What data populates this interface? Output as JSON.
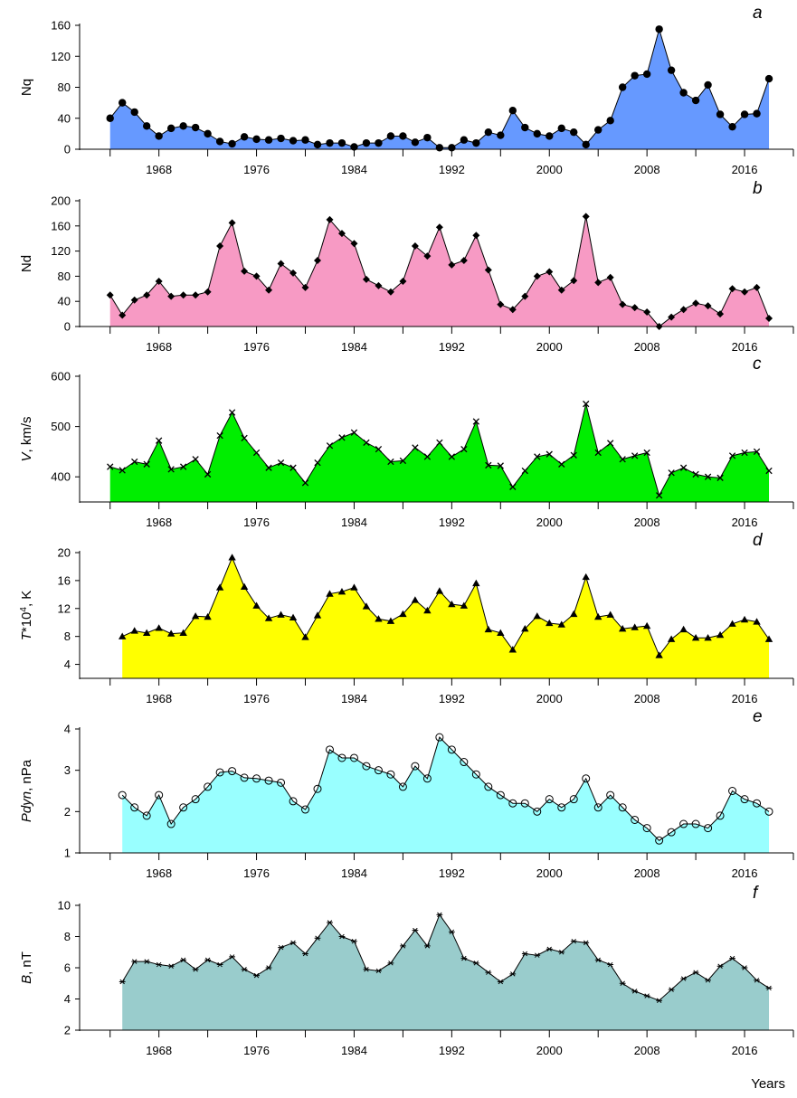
{
  "chart_data": [
    {
      "type": "area",
      "panel_label": "a",
      "ylabel": "Nq",
      "ylabel_parts": [
        {
          "t": "Nq"
        }
      ],
      "ylim": [
        0,
        160
      ],
      "yticks": [
        0,
        40,
        80,
        120,
        160
      ],
      "xlim": [
        1961.5,
        2020
      ],
      "xticks": [
        1968,
        1976,
        1984,
        1992,
        2000,
        2008,
        2016
      ],
      "fill_color": "#6699ff",
      "marker": "dot",
      "x": [
        1964,
        1965,
        1966,
        1967,
        1968,
        1969,
        1970,
        1971,
        1972,
        1973,
        1974,
        1975,
        1976,
        1977,
        1978,
        1979,
        1980,
        1981,
        1982,
        1983,
        1984,
        1985,
        1986,
        1987,
        1988,
        1989,
        1990,
        1991,
        1992,
        1993,
        1994,
        1995,
        1996,
        1997,
        1998,
        1999,
        2000,
        2001,
        2002,
        2003,
        2004,
        2005,
        2006,
        2007,
        2008,
        2009,
        2010,
        2011,
        2012,
        2013,
        2014,
        2015,
        2016,
        2017,
        2018
      ],
      "values": [
        40,
        60,
        48,
        30,
        17,
        27,
        30,
        28,
        20,
        10,
        7,
        16,
        13,
        12,
        14,
        11,
        12,
        6,
        8,
        8,
        3,
        8,
        8,
        17,
        17,
        9,
        15,
        2,
        2,
        12,
        8,
        22,
        18,
        50,
        28,
        20,
        17,
        27,
        22,
        6,
        25,
        37,
        80,
        95,
        97,
        155,
        102,
        73,
        63,
        83,
        45,
        29,
        45,
        46,
        91
      ]
    },
    {
      "type": "area",
      "panel_label": "b",
      "ylabel": "Nd",
      "ylabel_parts": [
        {
          "t": "Nd"
        }
      ],
      "ylim": [
        0,
        200
      ],
      "yticks": [
        0,
        40,
        80,
        120,
        160,
        200
      ],
      "xlim": [
        1961.5,
        2020
      ],
      "xticks": [
        1968,
        1976,
        1984,
        1992,
        2000,
        2008,
        2016
      ],
      "fill_color": "#f79ac4",
      "marker": "diamond",
      "x": [
        1964,
        1965,
        1966,
        1967,
        1968,
        1969,
        1970,
        1971,
        1972,
        1973,
        1974,
        1975,
        1976,
        1977,
        1978,
        1979,
        1980,
        1981,
        1982,
        1983,
        1984,
        1985,
        1986,
        1987,
        1988,
        1989,
        1990,
        1991,
        1992,
        1993,
        1994,
        1995,
        1996,
        1997,
        1998,
        1999,
        2000,
        2001,
        2002,
        2003,
        2004,
        2005,
        2006,
        2007,
        2008,
        2009,
        2010,
        2011,
        2012,
        2013,
        2014,
        2015,
        2016,
        2017,
        2018
      ],
      "values": [
        50,
        18,
        42,
        50,
        72,
        48,
        50,
        50,
        55,
        128,
        165,
        88,
        80,
        58,
        100,
        85,
        62,
        105,
        170,
        148,
        132,
        75,
        65,
        55,
        72,
        128,
        112,
        158,
        98,
        105,
        145,
        90,
        35,
        27,
        48,
        80,
        87,
        58,
        73,
        175,
        70,
        78,
        35,
        30,
        23,
        0,
        15,
        27,
        37,
        33,
        20,
        60,
        55,
        62,
        13
      ]
    },
    {
      "type": "area",
      "panel_label": "c",
      "ylabel": "V, km/s",
      "ylabel_parts": [
        {
          "t": "V",
          "italic": true
        },
        {
          "t": ", km/s"
        }
      ],
      "ylim": [
        350,
        600
      ],
      "yticks": [
        400,
        500,
        600
      ],
      "xlim": [
        1961.5,
        2020
      ],
      "xticks": [
        1968,
        1976,
        1984,
        1992,
        2000,
        2008,
        2016
      ],
      "fill_color": "#00ee00",
      "marker": "x",
      "x": [
        1964,
        1965,
        1966,
        1967,
        1968,
        1969,
        1970,
        1971,
        1972,
        1973,
        1974,
        1975,
        1976,
        1977,
        1978,
        1979,
        1980,
        1981,
        1982,
        1983,
        1984,
        1985,
        1986,
        1987,
        1988,
        1989,
        1990,
        1991,
        1992,
        1993,
        1994,
        1995,
        1996,
        1997,
        1998,
        1999,
        2000,
        2001,
        2002,
        2003,
        2004,
        2005,
        2006,
        2007,
        2008,
        2009,
        2010,
        2011,
        2012,
        2013,
        2014,
        2015,
        2016,
        2017,
        2018
      ],
      "values": [
        420,
        413,
        430,
        425,
        472,
        415,
        420,
        435,
        405,
        482,
        528,
        477,
        448,
        418,
        428,
        418,
        388,
        428,
        462,
        478,
        488,
        468,
        455,
        430,
        432,
        458,
        440,
        468,
        440,
        455,
        510,
        423,
        422,
        380,
        412,
        440,
        445,
        425,
        443,
        545,
        448,
        467,
        435,
        442,
        448,
        363,
        408,
        418,
        405,
        400,
        398,
        442,
        448,
        450,
        412
      ]
    },
    {
      "type": "area",
      "panel_label": "d",
      "ylabel": "T*10^4, K",
      "ylabel_parts": [
        {
          "t": "T",
          "italic": true
        },
        {
          "t": "*10"
        },
        {
          "t": "4",
          "sup": true
        },
        {
          "t": ", K"
        }
      ],
      "ylim": [
        2,
        20
      ],
      "yticks": [
        4,
        8,
        12,
        16,
        20
      ],
      "xlim": [
        1961.5,
        2020
      ],
      "xticks": [
        1968,
        1976,
        1984,
        1992,
        2000,
        2008,
        2016
      ],
      "fill_color": "#ffff00",
      "marker": "triangle",
      "x": [
        1965,
        1966,
        1967,
        1968,
        1969,
        1970,
        1971,
        1972,
        1973,
        1974,
        1975,
        1976,
        1977,
        1978,
        1979,
        1980,
        1981,
        1982,
        1983,
        1984,
        1985,
        1986,
        1987,
        1988,
        1989,
        1990,
        1991,
        1992,
        1993,
        1994,
        1995,
        1996,
        1997,
        1998,
        1999,
        2000,
        2001,
        2002,
        2003,
        2004,
        2005,
        2006,
        2007,
        2008,
        2009,
        2010,
        2011,
        2012,
        2013,
        2014,
        2015,
        2016,
        2017,
        2018
      ],
      "values": [
        8.0,
        8.8,
        8.5,
        9.2,
        8.4,
        8.5,
        10.9,
        10.8,
        15.0,
        19.3,
        15.1,
        12.4,
        10.6,
        11.1,
        10.7,
        7.9,
        11.0,
        14.1,
        14.4,
        15.0,
        12.3,
        10.5,
        10.2,
        11.2,
        13.2,
        11.7,
        14.5,
        12.6,
        12.4,
        15.6,
        9.0,
        8.5,
        6.1,
        9.1,
        10.9,
        9.9,
        9.7,
        11.2,
        16.5,
        10.8,
        11.1,
        9.1,
        9.3,
        9.5,
        5.3,
        7.6,
        9.0,
        7.8,
        7.8,
        8.2,
        9.8,
        10.4,
        10.1,
        7.6
      ]
    },
    {
      "type": "area",
      "panel_label": "e",
      "ylabel": "Pdyn, nPa",
      "ylabel_parts": [
        {
          "t": "Pdyn",
          "italic": true
        },
        {
          "t": ", nPa"
        }
      ],
      "ylim": [
        1,
        4
      ],
      "yticks": [
        1,
        2,
        3,
        4
      ],
      "xlim": [
        1961.5,
        2020
      ],
      "xticks": [
        1968,
        1976,
        1984,
        1992,
        2000,
        2008,
        2016
      ],
      "fill_color": "#99ffff",
      "marker": "circle",
      "x": [
        1965,
        1966,
        1967,
        1968,
        1969,
        1970,
        1971,
        1972,
        1973,
        1974,
        1975,
        1976,
        1977,
        1978,
        1979,
        1980,
        1981,
        1982,
        1983,
        1984,
        1985,
        1986,
        1987,
        1988,
        1989,
        1990,
        1991,
        1992,
        1993,
        1994,
        1995,
        1996,
        1997,
        1998,
        1999,
        2000,
        2001,
        2002,
        2003,
        2004,
        2005,
        2006,
        2007,
        2008,
        2009,
        2010,
        2011,
        2012,
        2013,
        2014,
        2015,
        2016,
        2017,
        2018
      ],
      "values": [
        2.4,
        2.1,
        1.9,
        2.4,
        1.7,
        2.1,
        2.3,
        2.6,
        2.95,
        2.98,
        2.82,
        2.8,
        2.75,
        2.7,
        2.25,
        2.05,
        2.55,
        3.5,
        3.3,
        3.3,
        3.1,
        3.0,
        2.9,
        2.6,
        3.1,
        2.8,
        3.8,
        3.5,
        3.2,
        2.9,
        2.6,
        2.4,
        2.2,
        2.2,
        2.0,
        2.3,
        2.1,
        2.3,
        2.8,
        2.1,
        2.4,
        2.1,
        1.8,
        1.6,
        1.3,
        1.5,
        1.7,
        1.7,
        1.6,
        1.9,
        2.5,
        2.3,
        2.2,
        2.0
      ]
    },
    {
      "type": "area",
      "panel_label": "f",
      "ylabel": "B, nT",
      "ylabel_parts": [
        {
          "t": "B",
          "italic": true
        },
        {
          "t": ", nT"
        }
      ],
      "ylim": [
        2,
        10
      ],
      "yticks": [
        2,
        4,
        6,
        8,
        10
      ],
      "xlim": [
        1961.5,
        2020
      ],
      "xticks": [
        1968,
        1976,
        1984,
        1992,
        2000,
        2008,
        2016
      ],
      "xlabel": "Years",
      "fill_color": "#99cccc",
      "marker": "star",
      "x": [
        1965,
        1966,
        1967,
        1968,
        1969,
        1970,
        1971,
        1972,
        1973,
        1974,
        1975,
        1976,
        1977,
        1978,
        1979,
        1980,
        1981,
        1982,
        1983,
        1984,
        1985,
        1986,
        1987,
        1988,
        1989,
        1990,
        1991,
        1992,
        1993,
        1994,
        1995,
        1996,
        1997,
        1998,
        1999,
        2000,
        2001,
        2002,
        2003,
        2004,
        2005,
        2006,
        2007,
        2008,
        2009,
        2010,
        2011,
        2012,
        2013,
        2014,
        2015,
        2016,
        2017,
        2018
      ],
      "values": [
        5.1,
        6.4,
        6.4,
        6.2,
        6.1,
        6.5,
        5.9,
        6.5,
        6.2,
        6.7,
        5.9,
        5.5,
        6.0,
        7.3,
        7.6,
        6.9,
        7.9,
        8.9,
        8.0,
        7.7,
        5.9,
        5.8,
        6.3,
        7.4,
        8.4,
        7.4,
        9.4,
        8.3,
        6.6,
        6.3,
        5.7,
        5.1,
        5.6,
        6.9,
        6.8,
        7.2,
        7.0,
        7.7,
        7.6,
        6.5,
        6.2,
        5.0,
        4.5,
        4.2,
        3.9,
        4.6,
        5.3,
        5.7,
        5.2,
        6.1,
        6.6,
        6.0,
        5.2,
        4.7
      ]
    }
  ]
}
